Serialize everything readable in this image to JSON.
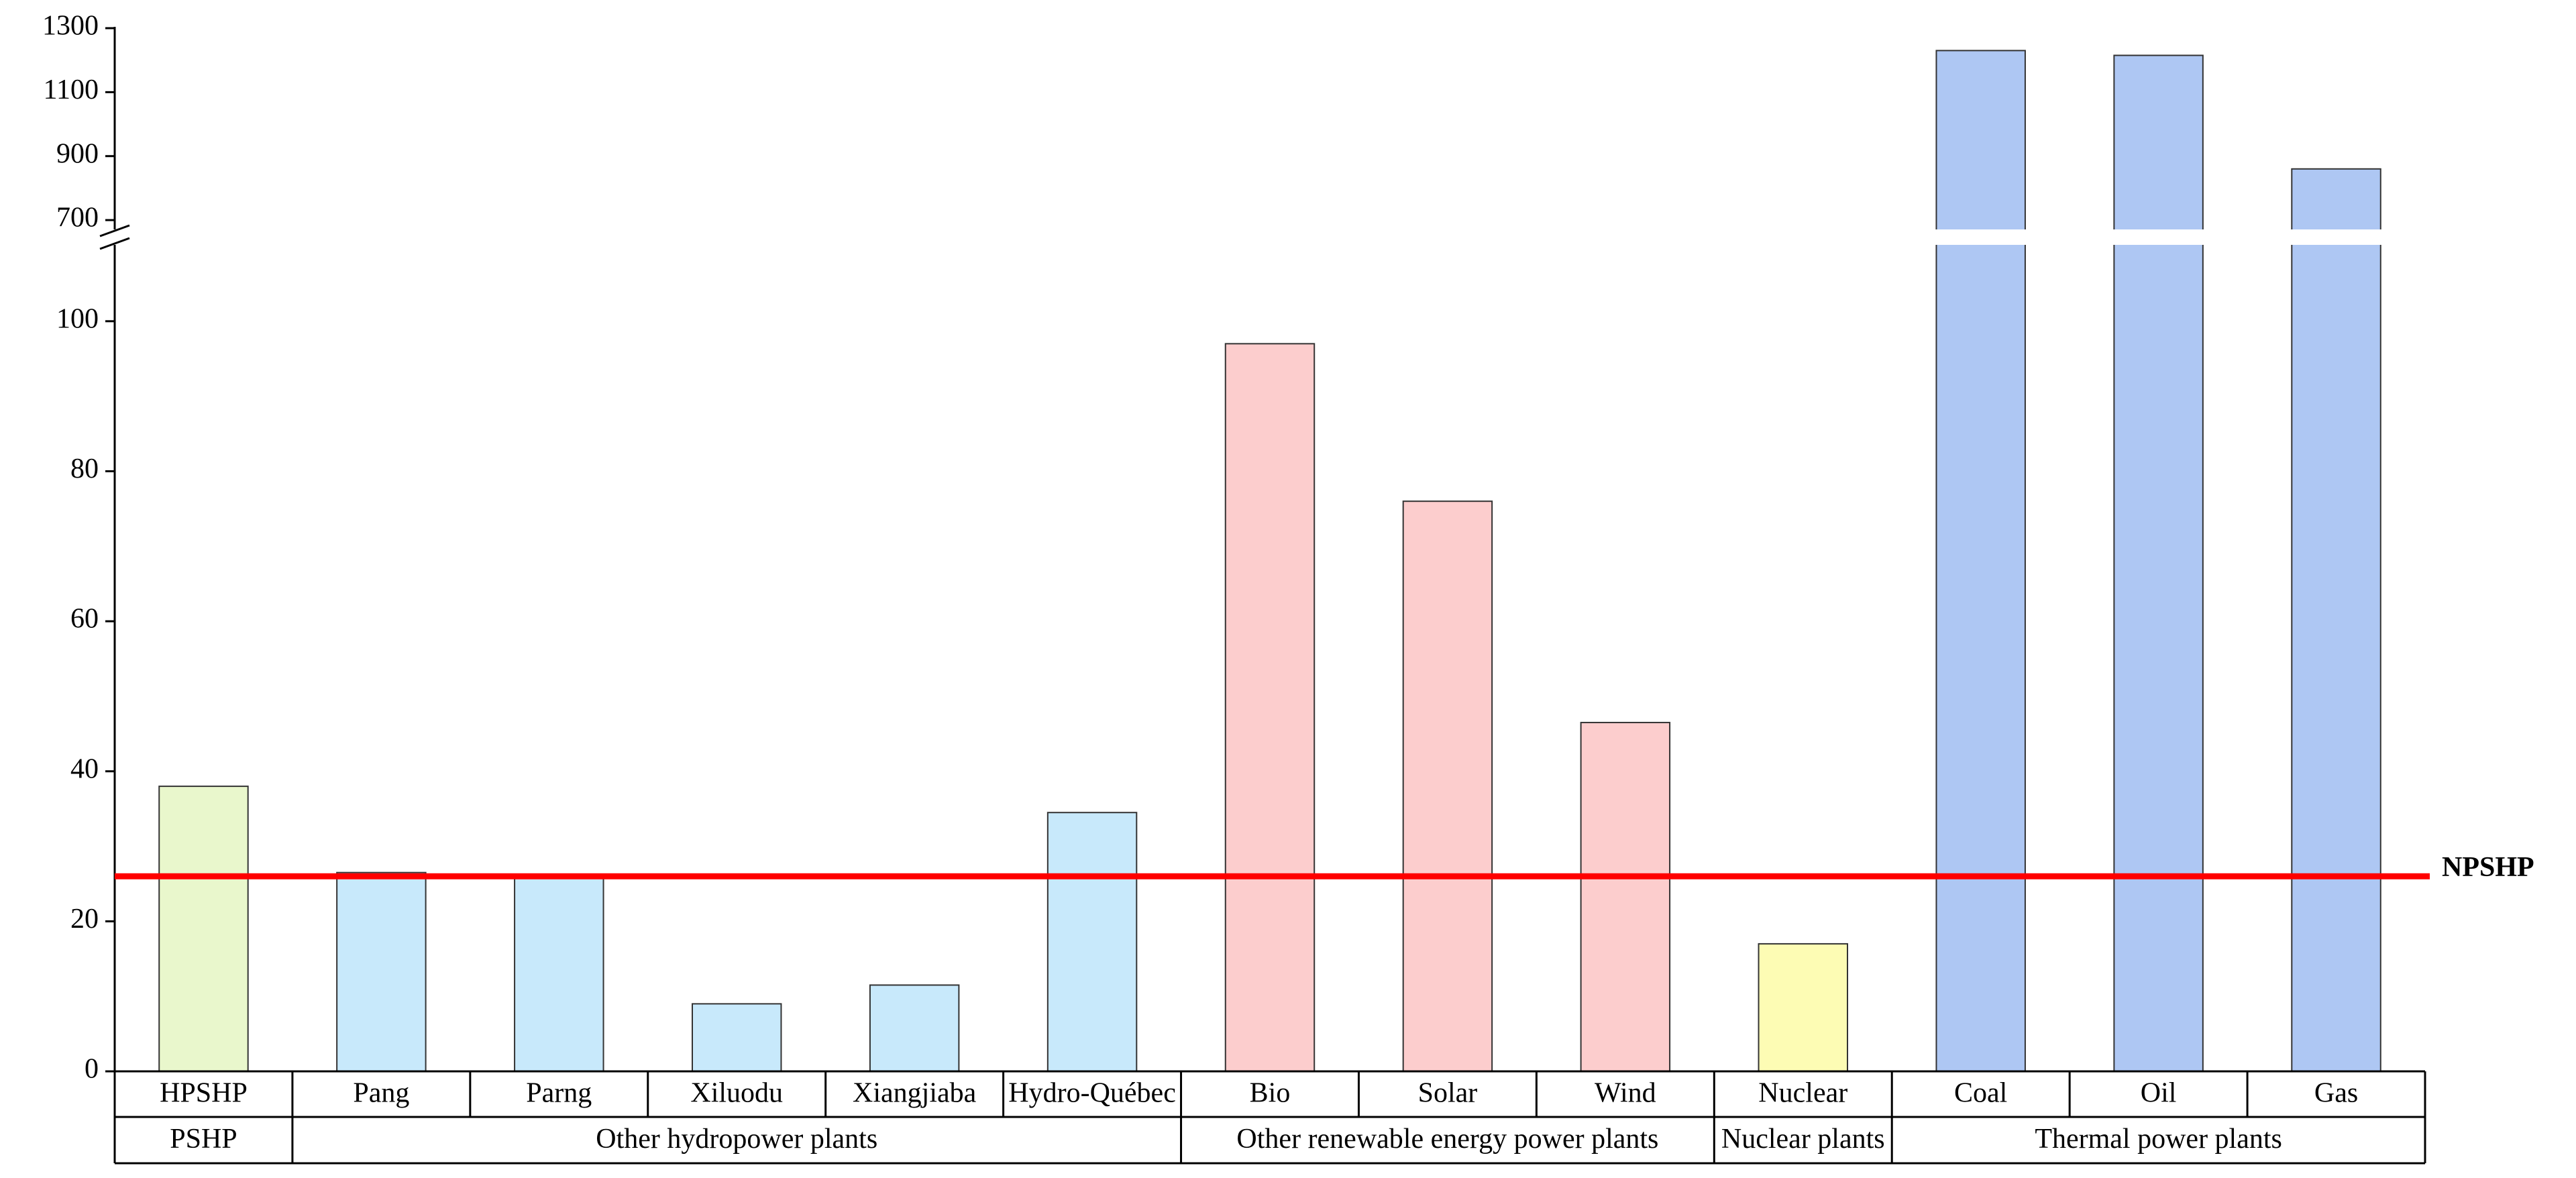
{
  "chart_data": {
    "type": "bar",
    "categories": [
      "HPSHP",
      "Pang",
      "Parng",
      "Xiluodu",
      "Xiangjiaba",
      "Hydro-Québec",
      "Bio",
      "Solar",
      "Wind",
      "Nuclear",
      "Coal",
      "Oil",
      "Gas"
    ],
    "series": [
      {
        "name": "PSHP",
        "color": "#e9f7cc",
        "values": [
          38,
          null,
          null,
          null,
          null,
          null,
          null,
          null,
          null,
          null,
          null,
          null,
          null
        ]
      },
      {
        "name": "Other hydropower plants",
        "color": "#c8e9fb",
        "values": [
          null,
          26.5,
          26,
          9,
          11.5,
          34.5,
          null,
          null,
          null,
          null,
          null,
          null,
          null
        ]
      },
      {
        "name": "Other renewable energy power plants",
        "color": "#fccdcd",
        "values": [
          null,
          null,
          null,
          null,
          null,
          null,
          97,
          76,
          46.5,
          null,
          null,
          null,
          null
        ]
      },
      {
        "name": "Nuclear plants",
        "color": "#fdfcb4",
        "values": [
          null,
          null,
          null,
          null,
          null,
          null,
          null,
          null,
          null,
          17,
          null,
          null,
          null
        ]
      },
      {
        "name": "Thermal power plants",
        "color": "#aec7f3",
        "values": [
          null,
          null,
          null,
          null,
          null,
          null,
          null,
          null,
          null,
          null,
          1230,
          1215,
          860
        ]
      }
    ],
    "ylim": [
      0,
      110
    ],
    "yticks": [
      0,
      20,
      40,
      60,
      80,
      100
    ],
    "upper_ylim": [
      675,
      1300
    ],
    "upper_yticks": [
      700,
      900,
      1100,
      1300
    ],
    "reference_line": {
      "label": "NPSHP",
      "value": 26,
      "color": "#ff0000"
    }
  }
}
